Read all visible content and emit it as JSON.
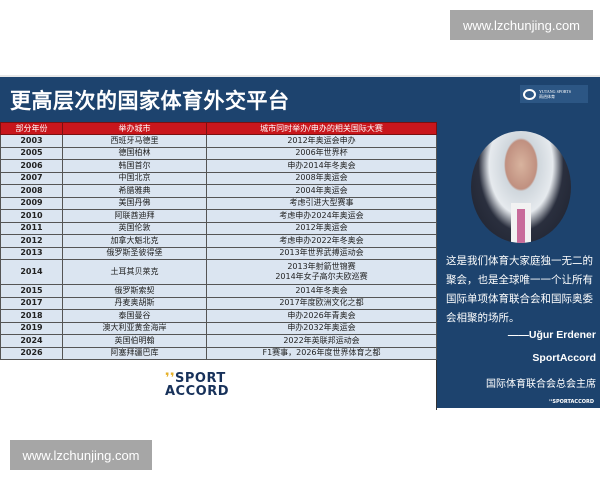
{
  "watermark": "www.lzchunjing.com",
  "slide": {
    "title": "更高层次的国家体育外交平台",
    "brand_logo": {
      "line1": "YUTANG SPORTS",
      "line2": "雨逍体育"
    },
    "table": {
      "headers": [
        "部分年份",
        "举办城市",
        "城市同时举办/申办的相关国际大赛"
      ],
      "rows": [
        [
          "2003",
          "西班牙马德里",
          "2012年奥运会申办"
        ],
        [
          "2005",
          "德国柏林",
          "2006年世界杯"
        ],
        [
          "2006",
          "韩国首尔",
          "申办2014年冬奥会"
        ],
        [
          "2007",
          "中国北京",
          "2008年奥运会"
        ],
        [
          "2008",
          "希腊雅典",
          "2004年奥运会"
        ],
        [
          "2009",
          "美国丹佛",
          "考虑引进大型赛事"
        ],
        [
          "2010",
          "阿联酋迪拜",
          "考虑申办2024年奥运会"
        ],
        [
          "2011",
          "英国伦敦",
          "2012年奥运会"
        ],
        [
          "2012",
          "加拿大魁北克",
          "考虑申办2022年冬奥会"
        ],
        [
          "2013",
          "俄罗斯圣彼得堡",
          "2013年世界武搏运动会"
        ],
        [
          "2014",
          "土耳其贝莱克",
          "2013年射箭世锦赛\n2014年女子高尔夫欧巡赛"
        ],
        [
          "2015",
          "俄罗斯索契",
          "2014年冬奥会"
        ],
        [
          "2017",
          "丹麦奥胡斯",
          "2017年度欧洲文化之都"
        ],
        [
          "2018",
          "泰国曼谷",
          "申办2026年青奥会"
        ],
        [
          "2019",
          "澳大利亚黄金海岸",
          "申办2032年奥运会"
        ],
        [
          "2024",
          "英国伯明翰",
          "2022年英联邦运动会"
        ],
        [
          "2026",
          "阿塞拜疆巴库",
          "F1赛事，2026年度世界体育之都"
        ]
      ]
    },
    "sportaccord_logo": {
      "line1": "SPORT",
      "line2": "ACCORD"
    },
    "quote": {
      "text": "这是我们体育大家庭独一无二的聚会，也是全球唯一一个让所有国际单项体育联合会和国际奥委会相聚的场所。",
      "author": "——Uğur Erdener",
      "org": "SportAccord",
      "role": "国际体育联合会总会主席",
      "footer_logo": "SPORTACCORD"
    }
  },
  "colors": {
    "slide_bg": "#1d436e",
    "header_red": "#c9161c",
    "row_bg": "#dbe5f1"
  }
}
